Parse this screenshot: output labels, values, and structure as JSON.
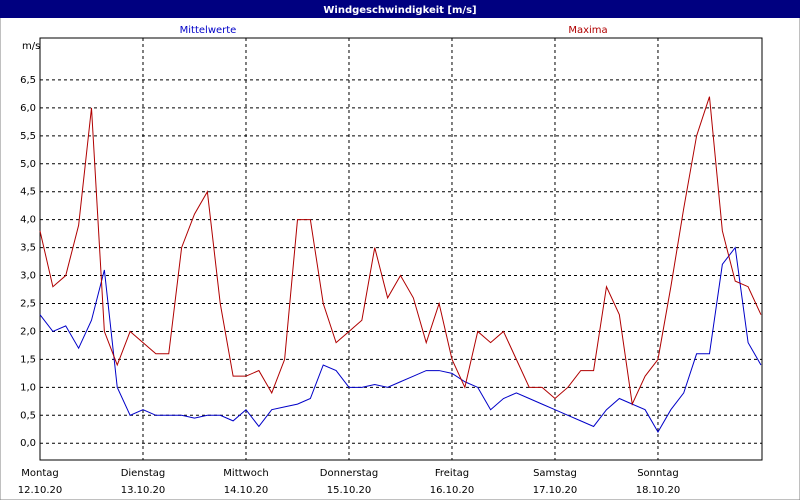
{
  "chart_data": {
    "type": "line",
    "title": "Windgeschwindigkeit [m/s]",
    "y_label": "m/s",
    "x": [
      0,
      0.125,
      0.25,
      0.375,
      0.5,
      0.625,
      0.75,
      0.875,
      1,
      1.125,
      1.25,
      1.375,
      1.5,
      1.625,
      1.75,
      1.875,
      2,
      2.125,
      2.25,
      2.375,
      2.5,
      2.625,
      2.75,
      2.875,
      3,
      3.125,
      3.25,
      3.375,
      3.5,
      3.625,
      3.75,
      3.875,
      4,
      4.125,
      4.25,
      4.375,
      4.5,
      4.625,
      4.75,
      4.875,
      5,
      5.125,
      5.25,
      5.375,
      5.5,
      5.625,
      5.75,
      5.875,
      6,
      6.125,
      6.25,
      6.375,
      6.5,
      6.625,
      6.75,
      6.875,
      7
    ],
    "series": [
      {
        "name": "Mittelwerte",
        "color": "#0000c8",
        "values": [
          2.3,
          2.0,
          2.1,
          1.7,
          2.2,
          3.1,
          1.0,
          0.5,
          0.6,
          0.5,
          0.5,
          0.5,
          0.45,
          0.5,
          0.5,
          0.4,
          0.6,
          0.3,
          0.6,
          0.65,
          0.7,
          0.8,
          1.4,
          1.3,
          1.0,
          1.0,
          1.05,
          1.0,
          1.1,
          1.2,
          1.3,
          1.3,
          1.25,
          1.1,
          1.0,
          0.6,
          0.8,
          0.9,
          0.8,
          0.7,
          0.6,
          0.5,
          0.4,
          0.3,
          0.6,
          0.8,
          0.7,
          0.6,
          0.2,
          0.6,
          0.9,
          1.6,
          1.6,
          3.2,
          3.5,
          1.8,
          1.4
        ]
      },
      {
        "name": "Maxima",
        "color": "#b00000",
        "values": [
          3.8,
          2.8,
          3.0,
          3.9,
          6.0,
          2.0,
          1.4,
          2.0,
          1.8,
          1.6,
          1.6,
          3.5,
          4.1,
          4.5,
          2.5,
          1.2,
          1.2,
          1.3,
          0.9,
          1.5,
          4.0,
          4.0,
          2.5,
          1.8,
          2.0,
          2.2,
          3.5,
          2.6,
          3.0,
          2.6,
          1.8,
          2.5,
          1.5,
          1.0,
          2.0,
          1.8,
          2.0,
          1.5,
          1.0,
          1.0,
          0.8,
          1.0,
          1.3,
          1.3,
          2.8,
          2.3,
          0.7,
          1.2,
          1.5,
          2.8,
          4.2,
          5.5,
          6.2,
          3.8,
          2.9,
          2.8,
          2.3
        ]
      }
    ],
    "xlim": [
      0,
      7.01
    ],
    "xticks": [
      {
        "value": 0,
        "label": "Montag"
      },
      {
        "value": 1,
        "label": "Dienstag"
      },
      {
        "value": 2,
        "label": "Mittwoch"
      },
      {
        "value": 3,
        "label": "Donnerstag"
      },
      {
        "value": 4,
        "label": "Freitag"
      },
      {
        "value": 5,
        "label": "Samstag"
      },
      {
        "value": 6,
        "label": "Sonntag"
      }
    ],
    "xtick_dates": [
      "12.10.20",
      "13.10.20",
      "14.10.20",
      "15.10.20",
      "16.10.20",
      "17.10.20",
      "18.10.20"
    ],
    "ylim": [
      -0.3,
      7.25
    ],
    "yticks": [
      {
        "value": 0,
        "label": "0,0"
      },
      {
        "value": 0.5,
        "label": "0,5"
      },
      {
        "value": 1,
        "label": "1,0"
      },
      {
        "value": 1.5,
        "label": "1,5"
      },
      {
        "value": 2,
        "label": "2,0"
      },
      {
        "value": 2.5,
        "label": "2,5"
      },
      {
        "value": 3,
        "label": "3,0"
      },
      {
        "value": 3.5,
        "label": "3,5"
      },
      {
        "value": 4,
        "label": "4,0"
      },
      {
        "value": 4.5,
        "label": "4,5"
      },
      {
        "value": 5,
        "label": "5,0"
      },
      {
        "value": 5.5,
        "label": "5,5"
      },
      {
        "value": 6,
        "label": "6,0"
      },
      {
        "value": 6.5,
        "label": "6,5"
      }
    ],
    "grid": true
  }
}
